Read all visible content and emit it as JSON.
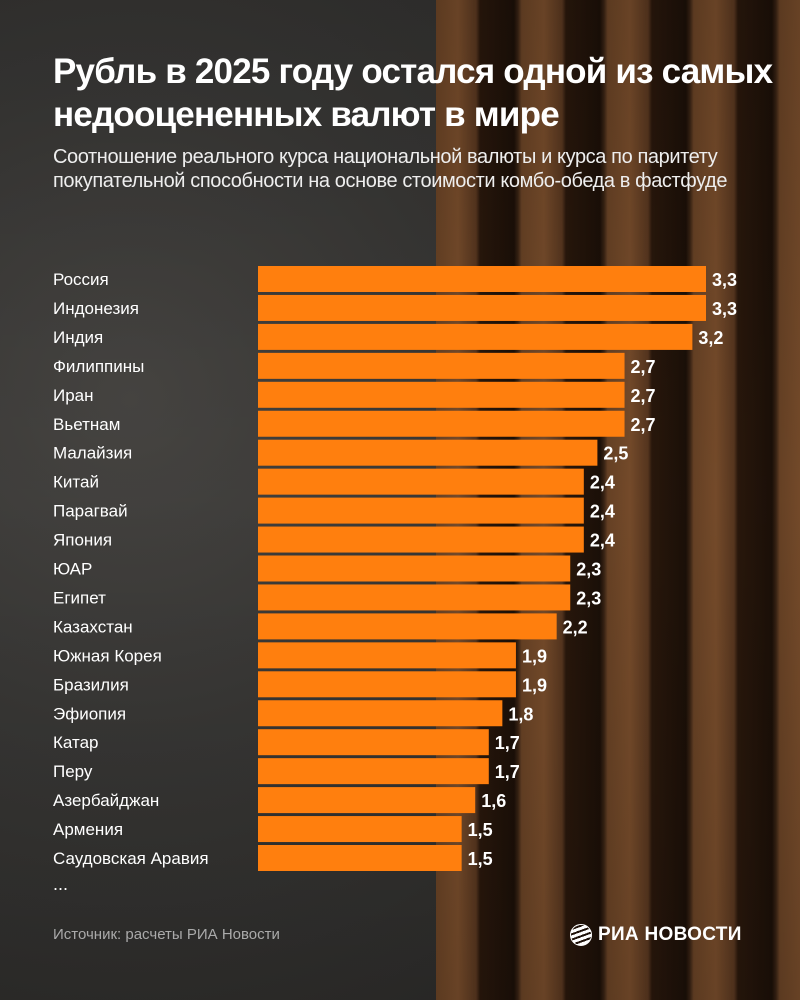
{
  "title": "Рубль в 2025 году остался одной из самых недооцененных валют в мире",
  "subtitle": "Соотношение реального курса национальной валюты и курса по паритету покупательной способности на основе стоимости комбо-обеда в фастфуде",
  "ellipsis": "...",
  "source": "Источник: расчеты РИА Новости",
  "logo_text": "РИА НОВОСТИ",
  "colors": {
    "bar": "#ff7f0e",
    "text": "#ffffff"
  },
  "chart_data": {
    "type": "bar",
    "orientation": "horizontal",
    "categories": [
      "Россия",
      "Индонезия",
      "Индия",
      "Филиппины",
      "Иран",
      "Вьетнам",
      "Малайзия",
      "Китай",
      "Парагвай",
      "Япония",
      "ЮАР",
      "Египет",
      "Казахстан",
      "Южная Корея",
      "Бразилия",
      "Эфиопия",
      "Катар",
      "Перу",
      "Азербайджан",
      "Армения",
      "Саудовская Аравия"
    ],
    "values": [
      3.3,
      3.3,
      3.2,
      2.7,
      2.7,
      2.7,
      2.5,
      2.4,
      2.4,
      2.4,
      2.3,
      2.3,
      2.2,
      1.9,
      1.9,
      1.8,
      1.7,
      1.7,
      1.6,
      1.5,
      1.5
    ],
    "value_labels": [
      "3,3",
      "3,3",
      "3,2",
      "2,7",
      "2,7",
      "2,7",
      "2,5",
      "2,4",
      "2,4",
      "2,4",
      "2,3",
      "2,3",
      "2,2",
      "1,9",
      "1,9",
      "1,8",
      "1,7",
      "1,7",
      "1,6",
      "1,5",
      "1,5"
    ],
    "xlim": [
      0,
      3.3
    ],
    "grid": false,
    "legend": "none"
  }
}
